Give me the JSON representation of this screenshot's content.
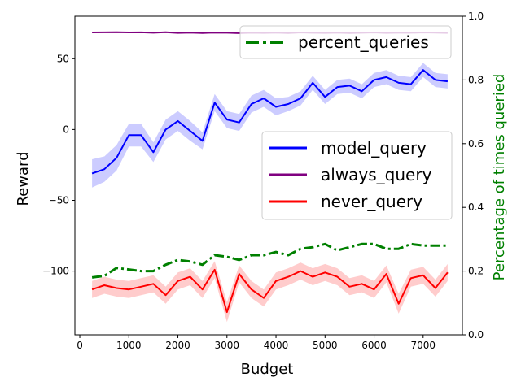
{
  "chart_data": {
    "type": "line",
    "xlabel": "Budget",
    "ylabel": "Reward",
    "y2label": "Percentage of times queried",
    "xlim": [
      -100,
      7800
    ],
    "ylim": [
      -145,
      80
    ],
    "y2lim": [
      0.0,
      1.0
    ],
    "x_ticks": [
      0,
      1000,
      2000,
      3000,
      4000,
      5000,
      6000,
      7000
    ],
    "x_tick_labels": [
      "0",
      "1000",
      "2000",
      "3000",
      "4000",
      "5000",
      "6000",
      "7000"
    ],
    "y_ticks": [
      50,
      0,
      -50,
      -100
    ],
    "y_tick_labels": [
      "50",
      "0",
      "−50",
      "−100"
    ],
    "y2_ticks": [
      0.0,
      0.2,
      0.4,
      0.6,
      0.8,
      1.0
    ],
    "y2_tick_labels": [
      "0.0",
      "0.2",
      "0.4",
      "0.6",
      "0.8",
      "1.0"
    ],
    "x": [
      250,
      500,
      750,
      1000,
      1250,
      1500,
      1750,
      2000,
      2250,
      2500,
      2750,
      3000,
      3250,
      3500,
      3750,
      4000,
      4250,
      4500,
      4750,
      5000,
      5250,
      5500,
      5750,
      6000,
      6250,
      6500,
      6750,
      7000,
      7250,
      7500
    ],
    "series": [
      {
        "name": "model_query",
        "axis": "left",
        "color": "#0000ff",
        "values": [
          -31,
          -28,
          -20,
          -4,
          -4,
          -16,
          0,
          6,
          -1,
          -8,
          19,
          7,
          5,
          18,
          22,
          16,
          18,
          22,
          33,
          23,
          30,
          31,
          27,
          35,
          37,
          33,
          32,
          42,
          35,
          34
        ],
        "band": [
          10,
          9,
          9,
          8,
          8,
          7,
          7,
          7,
          7,
          6,
          6,
          6,
          6,
          6,
          6,
          6,
          5,
          5,
          5,
          5,
          5,
          5,
          5,
          5,
          5,
          5,
          5,
          5,
          5,
          5
        ]
      },
      {
        "name": "always_query",
        "axis": "left",
        "color": "#800080",
        "values": [
          68.5,
          68.6,
          68.7,
          68.5,
          68.6,
          68.3,
          68.7,
          68.2,
          68.4,
          68.1,
          68.4,
          68.3,
          68.0,
          68.3,
          68.2,
          68.4,
          68.1,
          68.5,
          68.3,
          68.2,
          68.4,
          68.1,
          68.3,
          68.5,
          68.2,
          68.4,
          68.3,
          68.5,
          68.4,
          68.2
        ],
        "band": [
          0.5,
          0.5,
          0.5,
          0.5,
          0.5,
          0.5,
          0.5,
          0.5,
          0.5,
          0.5,
          0.5,
          0.5,
          0.5,
          0.5,
          0.5,
          0.5,
          0.5,
          0.5,
          0.5,
          0.5,
          0.5,
          0.5,
          0.5,
          0.5,
          0.5,
          0.5,
          0.5,
          0.5,
          0.5,
          0.5
        ]
      },
      {
        "name": "never_query",
        "axis": "left",
        "color": "#ff0000",
        "values": [
          -113,
          -110,
          -112,
          -113,
          -111,
          -109,
          -117,
          -107,
          -104,
          -113,
          -99,
          -129,
          -102,
          -113,
          -119,
          -107,
          -104,
          -100,
          -104,
          -101,
          -104,
          -111,
          -109,
          -113,
          -102,
          -123,
          -105,
          -103,
          -112,
          -101
        ],
        "band": [
          6,
          6,
          6,
          6,
          6,
          6,
          6,
          6,
          6,
          6,
          6,
          7,
          6,
          6,
          6,
          6,
          6,
          6,
          6,
          6,
          6,
          6,
          6,
          6,
          6,
          7,
          6,
          6,
          6,
          6
        ]
      },
      {
        "name": "percent_queries",
        "axis": "right",
        "color": "#008000",
        "dash": "dashdot",
        "values": [
          0.18,
          0.185,
          0.21,
          0.205,
          0.2,
          0.2,
          0.22,
          0.235,
          0.23,
          0.22,
          0.25,
          0.245,
          0.235,
          0.25,
          0.25,
          0.26,
          0.25,
          0.27,
          0.275,
          0.285,
          0.265,
          0.275,
          0.285,
          0.285,
          0.27,
          0.27,
          0.285,
          0.28,
          0.28,
          0.28
        ]
      }
    ],
    "legend": {
      "upper": {
        "placement": "top-right",
        "entries": [
          "percent_queries"
        ]
      },
      "middle": {
        "placement": "center-right",
        "entries": [
          "model_query",
          "always_query",
          "never_query"
        ]
      }
    },
    "colors": {
      "y2label": "#008000"
    },
    "grid": false
  }
}
